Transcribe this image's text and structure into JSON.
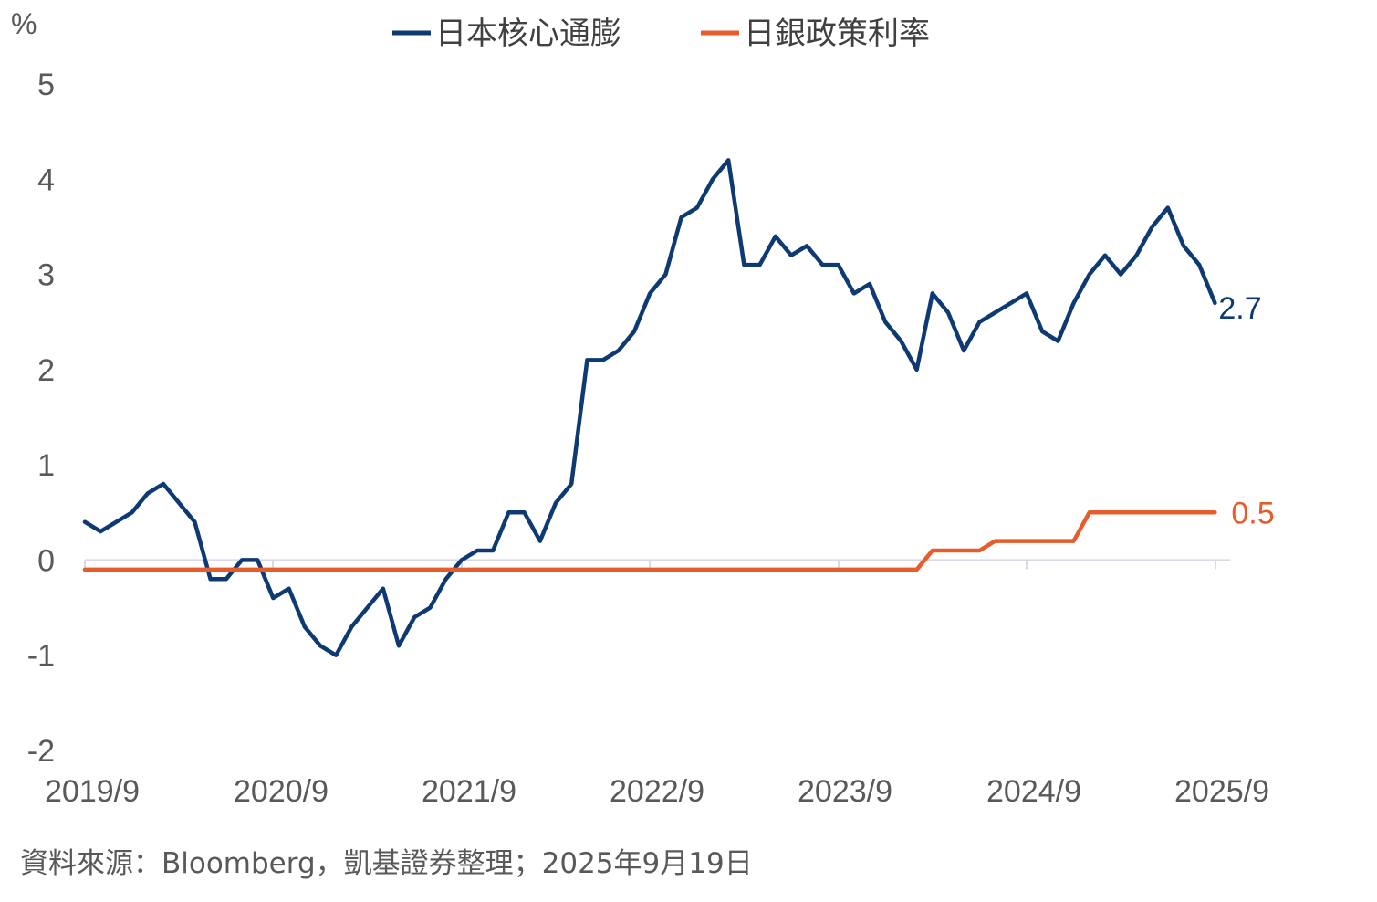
{
  "chart_data": {
    "type": "line",
    "unit_label": "%",
    "x_tick_labels": [
      "2019/9",
      "2020/9",
      "2021/9",
      "2022/9",
      "2023/9",
      "2024/9",
      "2025/9"
    ],
    "y_tick_labels": [
      "5",
      "4",
      "3",
      "2",
      "1",
      "0",
      "-1",
      "-2"
    ],
    "ylim": [
      -2,
      5
    ],
    "y_ticks": [
      5,
      4,
      3,
      2,
      1,
      0,
      -1,
      -2
    ],
    "x_start": "2019/9",
    "legend_position": "top-center",
    "grid": false,
    "series": [
      {
        "name": "日本核心通膨",
        "color": "#0E3A74",
        "end_label": "2.7",
        "values": [
          0.4,
          0.3,
          0.4,
          0.5,
          0.7,
          0.8,
          0.6,
          0.4,
          -0.2,
          -0.2,
          0.0,
          0.0,
          -0.4,
          -0.3,
          -0.7,
          -0.9,
          -1.0,
          -0.7,
          -0.5,
          -0.3,
          -0.9,
          -0.6,
          -0.5,
          -0.2,
          0.0,
          0.1,
          0.1,
          0.5,
          0.5,
          0.2,
          0.6,
          0.8,
          2.1,
          2.1,
          2.2,
          2.4,
          2.8,
          3.0,
          3.6,
          3.7,
          4.0,
          4.2,
          3.1,
          3.1,
          3.4,
          3.2,
          3.3,
          3.1,
          3.1,
          2.8,
          2.9,
          2.5,
          2.3,
          2.0,
          2.8,
          2.6,
          2.2,
          2.5,
          2.6,
          2.7,
          2.8,
          2.4,
          2.3,
          2.7,
          3.0,
          3.2,
          3.0,
          3.2,
          3.5,
          3.7,
          3.3,
          3.1,
          2.7
        ]
      },
      {
        "name": "日銀政策利率",
        "color": "#E65C2A",
        "end_label": "0.5",
        "values": [
          -0.1,
          -0.1,
          -0.1,
          -0.1,
          -0.1,
          -0.1,
          -0.1,
          -0.1,
          -0.1,
          -0.1,
          -0.1,
          -0.1,
          -0.1,
          -0.1,
          -0.1,
          -0.1,
          -0.1,
          -0.1,
          -0.1,
          -0.1,
          -0.1,
          -0.1,
          -0.1,
          -0.1,
          -0.1,
          -0.1,
          -0.1,
          -0.1,
          -0.1,
          -0.1,
          -0.1,
          -0.1,
          -0.1,
          -0.1,
          -0.1,
          -0.1,
          -0.1,
          -0.1,
          -0.1,
          -0.1,
          -0.1,
          -0.1,
          -0.1,
          -0.1,
          -0.1,
          -0.1,
          -0.1,
          -0.1,
          -0.1,
          -0.1,
          -0.1,
          -0.1,
          -0.1,
          -0.1,
          0.1,
          0.1,
          0.1,
          0.1,
          0.2,
          0.2,
          0.2,
          0.2,
          0.2,
          0.2,
          0.5,
          0.5,
          0.5,
          0.5,
          0.5,
          0.5,
          0.5,
          0.5,
          0.5
        ]
      }
    ]
  },
  "source_note": "資料來源：Bloomberg，凱基證券整理；2025年9月19日"
}
